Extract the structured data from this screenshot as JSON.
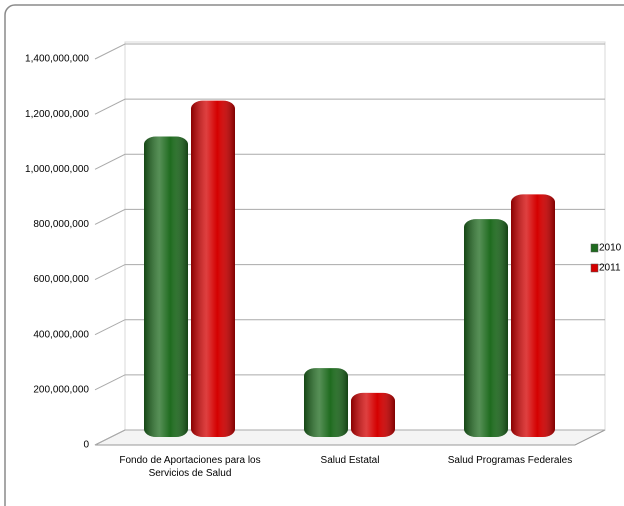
{
  "chart_data": {
    "type": "bar",
    "categories": [
      "Fondo de Aportaciones para los Servicios de Salud",
      "Salud Estatal",
      "Salud Programas Federales"
    ],
    "series": [
      {
        "name": "2010",
        "color": "#1f6b1f",
        "values": [
          1090000000,
          250000000,
          790000000
        ]
      },
      {
        "name": "2011",
        "color": "#d40000",
        "values": [
          1220000000,
          160000000,
          880000000
        ]
      }
    ],
    "ylim": [
      0,
      1400000000
    ],
    "yticks": [
      0,
      {
        "value": 200000000,
        "label": "200,000,000"
      },
      {
        "value": 400000000,
        "label": "400,000,000"
      },
      {
        "value": 600000000,
        "label": "600,000,000"
      },
      {
        "value": 800000000,
        "label": "800,000,000"
      },
      {
        "value": 1000000000,
        "label": "1,000,000,000"
      },
      {
        "value": 1200000000,
        "label": "1,200,000,000"
      },
      {
        "value": 1400000000,
        "label": "1,400,000,000"
      }
    ],
    "grid": true,
    "legend": "right"
  }
}
